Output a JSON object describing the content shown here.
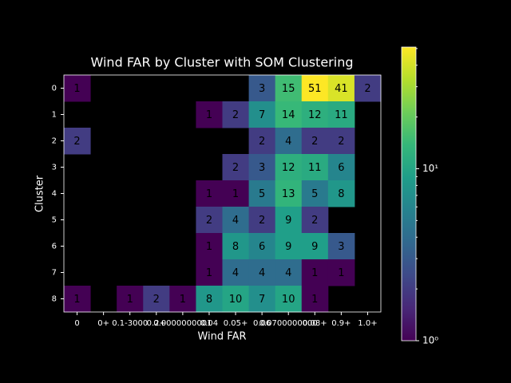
{
  "chart_data": {
    "type": "heatmap",
    "title": "Wind FAR by Cluster with SOM Clustering",
    "x_label": "Wind FAR",
    "y_label": "Cluster",
    "x_categories": [
      "0",
      "0+",
      "0.1-3000",
      "0.2+",
      "0.0000000001",
      "0.04",
      "0.05+",
      "0.06",
      "0.0700000000",
      "0.08+",
      "0.9+",
      "1.0+"
    ],
    "y_categories": [
      "0",
      "1",
      "2",
      "3",
      "4",
      "5",
      "6",
      "7",
      "8"
    ],
    "z": [
      [
        1,
        null,
        null,
        null,
        null,
        null,
        null,
        3,
        15,
        51,
        41,
        2
      ],
      [
        null,
        null,
        null,
        null,
        null,
        1,
        2,
        7,
        14,
        12,
        11,
        null
      ],
      [
        2,
        null,
        null,
        null,
        null,
        null,
        null,
        2,
        4,
        2,
        2,
        null
      ],
      [
        null,
        null,
        null,
        null,
        null,
        null,
        2,
        3,
        12,
        11,
        6,
        null
      ],
      [
        null,
        null,
        null,
        null,
        null,
        1,
        1,
        5,
        13,
        5,
        8,
        null
      ],
      [
        null,
        null,
        null,
        null,
        null,
        2,
        4,
        2,
        9,
        2,
        null,
        null
      ],
      [
        null,
        null,
        null,
        null,
        null,
        1,
        8,
        6,
        9,
        9,
        3,
        null
      ],
      [
        null,
        null,
        null,
        null,
        null,
        1,
        4,
        4,
        4,
        1,
        1,
        null
      ],
      [
        1,
        null,
        1,
        2,
        1,
        8,
        10,
        7,
        10,
        1,
        null,
        null
      ]
    ],
    "colormap": "viridis",
    "color_scale": "log",
    "clim": [
      1,
      51
    ],
    "cticks": [
      {
        "value": 1,
        "label": "10⁰"
      },
      {
        "value": 10,
        "label": "10¹"
      }
    ]
  }
}
